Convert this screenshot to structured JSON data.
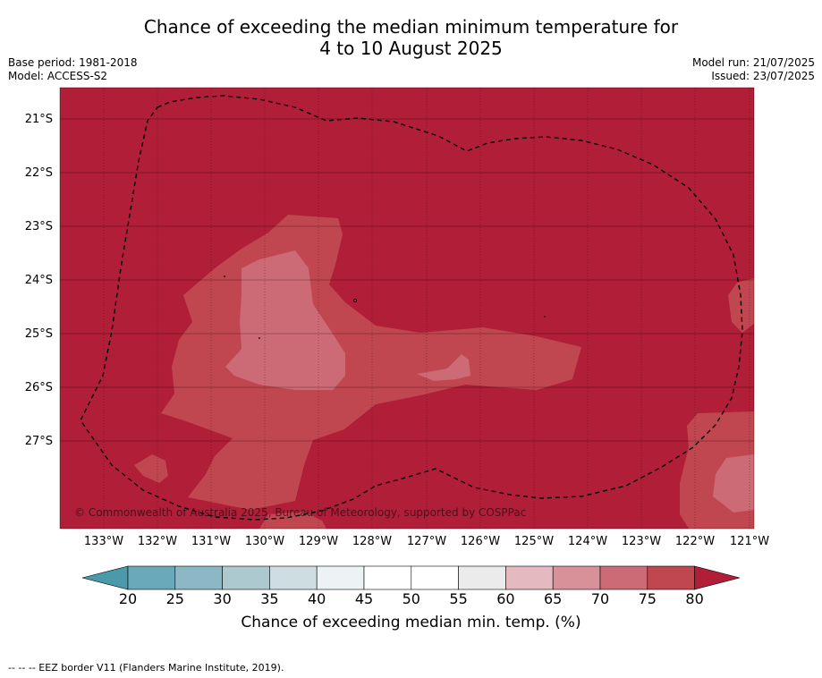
{
  "title_line1": "Chance of exceeding the median minimum temperature for",
  "title_line2": "4 to 10 August 2025",
  "base_period": "Base period: 1981-2018",
  "model": "Model: ACCESS-S2",
  "model_run": "Model run: 21/07/2025",
  "issued": "Issued: 23/07/2025",
  "lat_labels": [
    "21°S",
    "22°S",
    "23°S",
    "24°S",
    "25°S",
    "26°S",
    "27°S"
  ],
  "lon_labels": [
    "133°W",
    "132°W",
    "131°W",
    "130°W",
    "129°W",
    "128°W",
    "127°W",
    "126°W",
    "125°W",
    "124°W",
    "123°W",
    "122°W",
    "121°W"
  ],
  "copyright": "© Commonwealth of Australia 2025, Bureau of Meteorology, supported by COSPPac",
  "colorbar": {
    "ticks": [
      "20",
      "25",
      "30",
      "35",
      "40",
      "45",
      "50",
      "55",
      "60",
      "65",
      "70",
      "75",
      "80"
    ],
    "colors": [
      "#6aa9b9",
      "#8bb8c4",
      "#abc9cf",
      "#cddde2",
      "#edf2f4",
      "#ffffff",
      "#ffffff",
      "#ebebeb",
      "#e4b9bf",
      "#d99199",
      "#cc6a75",
      "#c0464f"
    ],
    "under_color": "#4a9aab",
    "over_color": "#b01e38",
    "label": "Chance of exceeding median min. temp. (%)"
  },
  "footer": "--  --  -- EEZ border V11 (Flanders Marine Institute, 2019)."
}
